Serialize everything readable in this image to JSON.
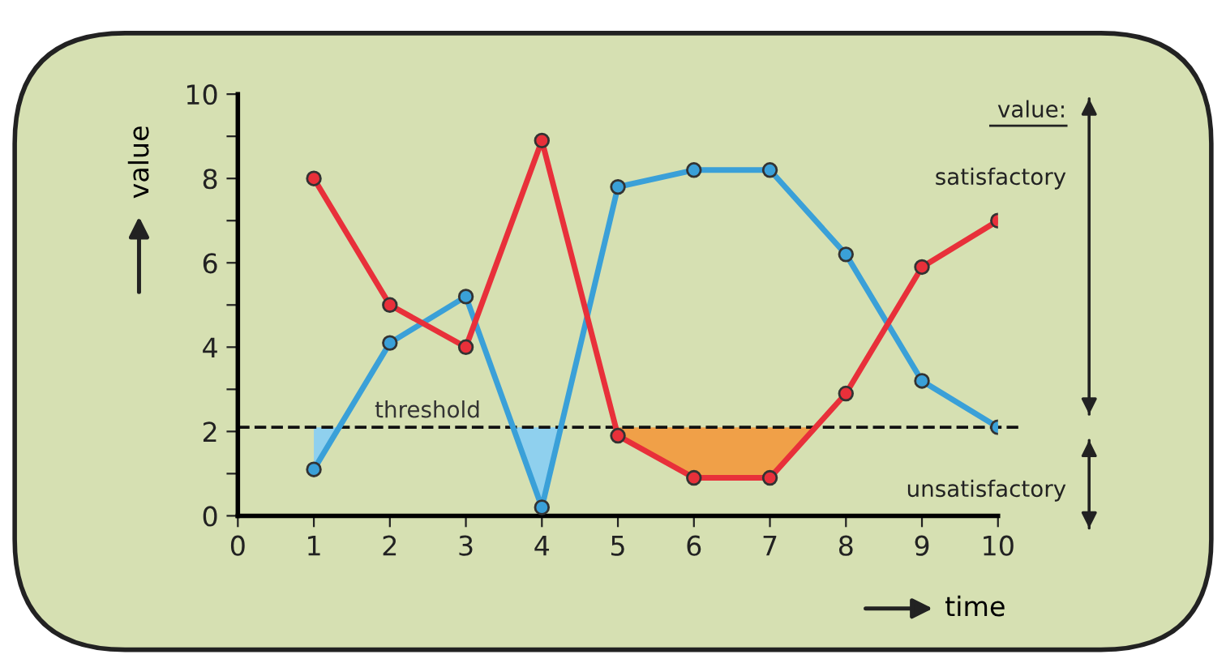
{
  "chart_data": {
    "type": "line",
    "xlabel": "time",
    "ylabel": "value",
    "x": [
      1,
      2,
      3,
      4,
      5,
      6,
      7,
      8,
      9,
      10
    ],
    "series": [
      {
        "type": "area",
        "marker": "none",
        "color": "#8fd0ee",
        "x": [
          1,
          1.33
        ],
        "values": [
          1.1,
          2.1
        ]
      },
      {
        "type": "area",
        "marker": "none",
        "color": "#8fd0ee",
        "x": [
          3.62,
          4,
          4.25
        ],
        "values": [
          2.1,
          0.2,
          2.1
        ]
      },
      {
        "type": "area",
        "marker": "none",
        "color": "#f0a048",
        "x": [
          4.97,
          5,
          6,
          7,
          7.6
        ],
        "values": [
          2.1,
          1.9,
          0.9,
          0.9,
          2.1
        ]
      },
      {
        "color": "#3aa0d8",
        "values": [
          1.1,
          4.1,
          5.2,
          0.2,
          7.8,
          8.2,
          8.2,
          6.2,
          3.2,
          2.1
        ]
      },
      {
        "color": "#e8303a",
        "values": [
          8.0,
          5.0,
          4.0,
          8.9,
          1.9,
          0.9,
          0.9,
          2.9,
          5.9,
          7.0
        ]
      }
    ],
    "xlim": [
      0,
      10
    ],
    "xticks": [
      0,
      1,
      2,
      3,
      4,
      5,
      6,
      7,
      8,
      9,
      10
    ],
    "ylim": [
      0,
      10
    ],
    "yticks": [
      0,
      {
        "value": 1,
        "label": null
      },
      2,
      {
        "value": 3,
        "label": null
      },
      4,
      {
        "value": 5,
        "label": null
      },
      6,
      {
        "value": 7,
        "label": null
      },
      8,
      {
        "value": 9,
        "label": null
      },
      10
    ],
    "ref_lines": [
      {
        "axis": "y",
        "value": 2.1,
        "label": "threshold",
        "color": "#111111",
        "line_style": "dashed"
      }
    ],
    "annotations": [
      "value:",
      "satisfactory",
      "unsatisfactory"
    ],
    "marker": "circle",
    "line_style": "solid",
    "grid": false
  }
}
